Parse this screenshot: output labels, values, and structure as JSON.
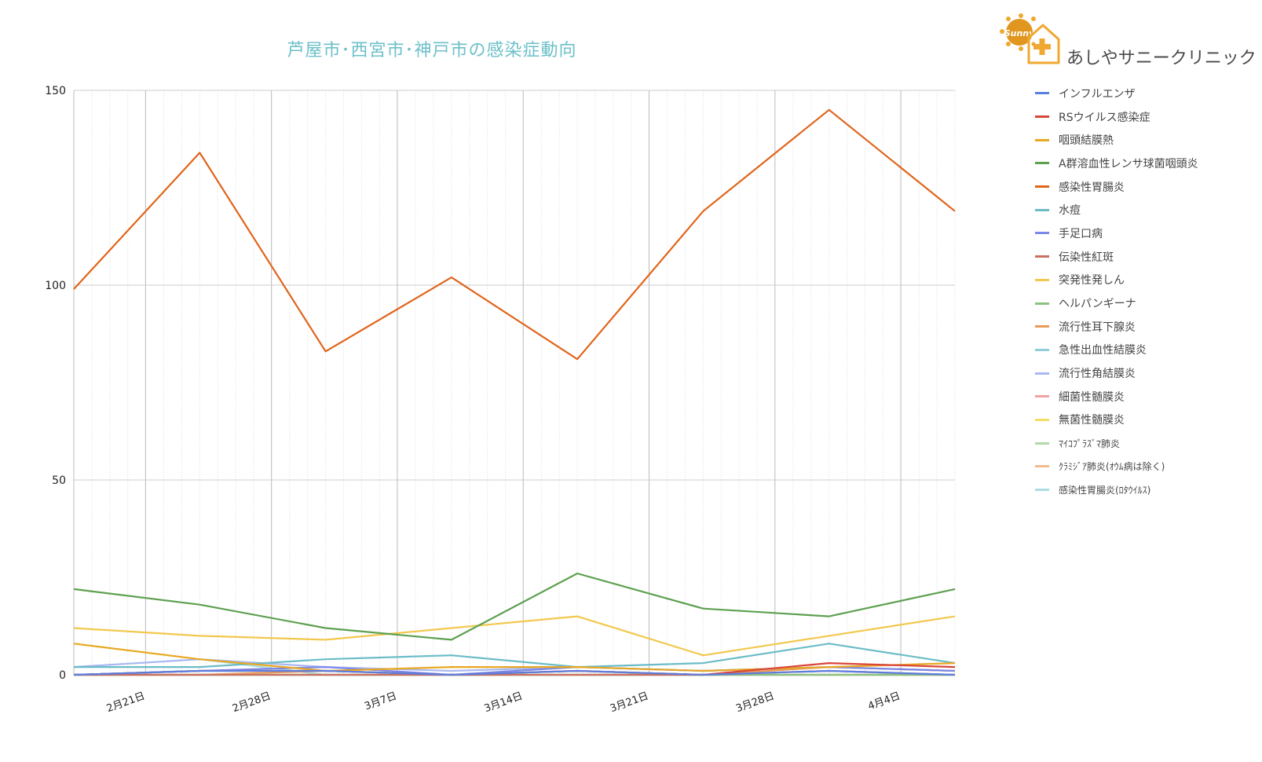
{
  "chart_data": {
    "type": "line",
    "title": "芦屋市･西宮市･神戸市の感染症動向",
    "xlabel": "",
    "ylabel": "",
    "ylim": [
      0,
      150
    ],
    "yticks": [
      0,
      50,
      100,
      150
    ],
    "x": [
      "2/17",
      "2/24",
      "3/3",
      "3/10",
      "3/17",
      "3/24",
      "3/31",
      "4/7"
    ],
    "x_tick_labels": [
      "2月21日",
      "2月28日",
      "3月7日",
      "3月14日",
      "3月21日",
      "3月28日",
      "4月4日"
    ],
    "x_tick_positions": [
      0.57,
      1.57,
      2.57,
      3.57,
      4.57,
      5.57,
      6.57
    ],
    "grid": true,
    "legend": "right",
    "series": [
      {
        "name": "インフルエンザ",
        "color": "#5b7fe0",
        "values": [
          0,
          1,
          1,
          0,
          1,
          0,
          1,
          0
        ]
      },
      {
        "name": "RSウイルス感染症",
        "color": "#d9453b",
        "values": [
          0,
          1,
          1,
          0,
          1,
          0,
          3,
          2
        ]
      },
      {
        "name": "咽頭結膜熱",
        "color": "#e8a821",
        "values": [
          8,
          4,
          1,
          2,
          2,
          1,
          2,
          3
        ]
      },
      {
        "name": "A群溶血性レンサ球菌咽頭炎",
        "color": "#5da04f",
        "values": [
          22,
          18,
          12,
          9,
          26,
          17,
          15,
          22
        ]
      },
      {
        "name": "感染性胃腸炎",
        "color": "#e0651b",
        "values": [
          99,
          134,
          83,
          102,
          81,
          119,
          145,
          119
        ]
      },
      {
        "name": "水痘",
        "color": "#6bbcc7",
        "values": [
          2,
          2,
          4,
          5,
          2,
          3,
          8,
          3
        ]
      },
      {
        "name": "手足口病",
        "color": "#7b88e8",
        "values": [
          0,
          1,
          2,
          0,
          2,
          1,
          2,
          1
        ]
      },
      {
        "name": "伝染性紅斑",
        "color": "#c97063",
        "values": [
          0,
          0,
          0,
          0,
          0,
          0,
          1,
          0
        ]
      },
      {
        "name": "突発性発しん",
        "color": "#f2c84e",
        "values": [
          12,
          10,
          9,
          12,
          15,
          5,
          10,
          15
        ]
      },
      {
        "name": "ヘルパンギーナ",
        "color": "#8cc27f",
        "values": [
          0,
          0,
          0,
          0,
          0,
          0,
          0,
          0
        ]
      },
      {
        "name": "流行性耳下腺炎",
        "color": "#eb9a56",
        "values": [
          0,
          0,
          1,
          0,
          1,
          0,
          2,
          1
        ]
      },
      {
        "name": "急性出血性結膜炎",
        "color": "#8ecfd7",
        "values": [
          0,
          0,
          0,
          0,
          0,
          0,
          0,
          0
        ]
      },
      {
        "name": "流行性角結膜炎",
        "color": "#a9b8f2",
        "values": [
          2,
          4,
          2,
          1,
          2,
          1,
          2,
          1
        ]
      },
      {
        "name": "細菌性髄膜炎",
        "color": "#f1a3a0",
        "values": [
          0,
          0,
          0,
          0,
          0,
          0,
          0,
          0
        ]
      },
      {
        "name": "無菌性髄膜炎",
        "color": "#f6dd63",
        "values": [
          0,
          0,
          0,
          0,
          0,
          0,
          0,
          0
        ]
      },
      {
        "name": "ﾏｲｺﾌﾟﾗｽﾞﾏ肺炎",
        "color": "#b2d9a8",
        "values": [
          0,
          0,
          0,
          0,
          0,
          0,
          0,
          0
        ]
      },
      {
        "name": "ｸﾗﾐｼﾞｱ肺炎(ｵｳﾑ病は除く)",
        "color": "#f2bc90",
        "values": [
          0,
          0,
          0,
          0,
          0,
          0,
          0,
          0
        ]
      },
      {
        "name": "感染性胃腸炎(ﾛﾀｳｲﾙｽ)",
        "color": "#a9dde3",
        "values": [
          2,
          4,
          0,
          0,
          0,
          0,
          0,
          0
        ]
      }
    ]
  },
  "logo": {
    "text": "あしやサニークリニック",
    "badge_text": "Sunny",
    "accent_color": "#f0a832"
  }
}
